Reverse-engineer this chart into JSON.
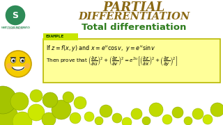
{
  "bg_color": "#ffffff",
  "title_line1": "PARTIAL",
  "title_line2": "DIFFERENTIATION",
  "title_color": "#8B6914",
  "subtitle": "Total differentiation",
  "subtitle_color": "#2e7d1e",
  "logo_color": "#2e8b57",
  "logo_text": "S",
  "logo_sub": "SWATI THONG MATHEMATICS",
  "logo_sub2": "Learning consistently",
  "example_label": "EXAMPLE",
  "example_bg": "#c8e600",
  "box_bg": "#ffff99",
  "box_border": "#b8b800",
  "line1": "If $z = f(x, y)$ and $x = e^u \\cos v,\\ y = e^u \\sin v$",
  "line2": "Then prove that $\\left(\\dfrac{\\partial z}{\\partial u}\\right)^{2} + \\left(\\dfrac{\\partial z}{\\partial v}\\right)^{2} = e^{2u}\\left[\\left(\\dfrac{\\partial z}{\\partial x}\\right)^{2} + \\left(\\dfrac{\\partial z}{\\partial y}\\right)^{2}\\right]$"
}
